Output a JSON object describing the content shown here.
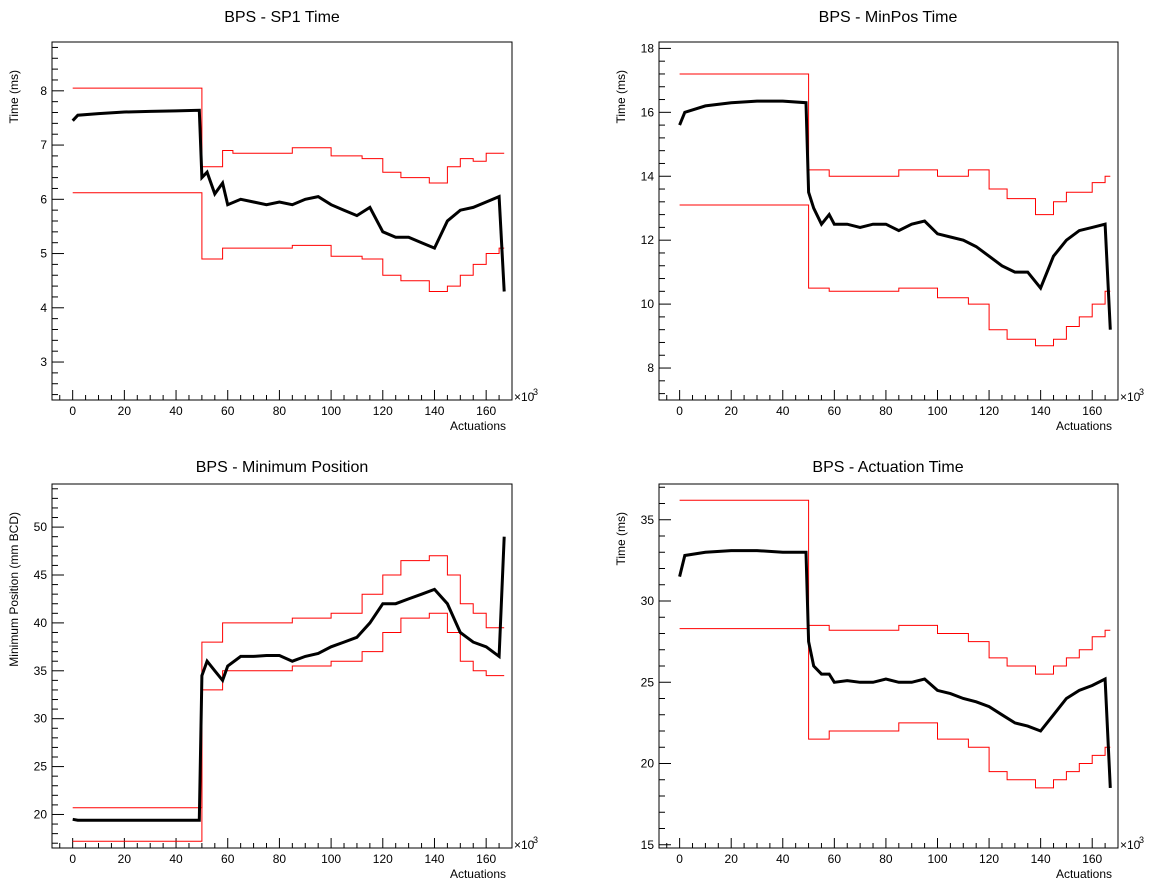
{
  "chart_data": [
    {
      "id": "sp1",
      "type": "line",
      "title": "BPS - SP1 Time",
      "xlabel": "Actuations",
      "ylabel": "Time (ms)",
      "x_multiplier": "×10",
      "x_multiplier_exp": "3",
      "xlim": [
        -8,
        170
      ],
      "ylim": [
        2.3,
        8.9
      ],
      "x_ticks": [
        0,
        20,
        40,
        60,
        80,
        100,
        120,
        140,
        160
      ],
      "y_ticks": [
        3,
        4,
        5,
        6,
        7,
        8
      ],
      "series": [
        {
          "role": "upper-limit",
          "color": "#ff0000",
          "x": [
            0,
            50,
            50,
            58,
            58,
            62,
            62,
            85,
            85,
            100,
            100,
            112,
            112,
            120,
            120,
            127,
            127,
            138,
            138,
            145,
            145,
            150,
            150,
            155,
            155,
            160,
            160,
            165,
            165,
            167
          ],
          "y": [
            8.05,
            8.05,
            6.6,
            6.6,
            6.9,
            6.9,
            6.85,
            6.85,
            6.95,
            6.95,
            6.8,
            6.8,
            6.75,
            6.75,
            6.5,
            6.5,
            6.4,
            6.4,
            6.3,
            6.3,
            6.6,
            6.6,
            6.75,
            6.75,
            6.7,
            6.7,
            6.85,
            6.85,
            6.85,
            6.85
          ]
        },
        {
          "role": "lower-limit",
          "color": "#ff0000",
          "x": [
            0,
            50,
            50,
            58,
            58,
            62,
            62,
            85,
            85,
            100,
            100,
            112,
            112,
            120,
            120,
            127,
            127,
            138,
            138,
            145,
            145,
            150,
            150,
            155,
            155,
            160,
            160,
            165,
            165,
            167
          ],
          "y": [
            6.12,
            6.12,
            4.9,
            4.9,
            5.1,
            5.1,
            5.1,
            5.1,
            5.15,
            5.15,
            4.95,
            4.95,
            4.9,
            4.9,
            4.6,
            4.6,
            4.5,
            4.5,
            4.3,
            4.3,
            4.4,
            4.4,
            4.6,
            4.6,
            4.8,
            4.8,
            5.0,
            5.0,
            5.1,
            5.1
          ]
        },
        {
          "role": "measured",
          "color": "#000000",
          "x": [
            0,
            2,
            10,
            20,
            30,
            40,
            49,
            50,
            52,
            55,
            58,
            60,
            65,
            70,
            75,
            80,
            85,
            90,
            95,
            100,
            105,
            110,
            115,
            120,
            125,
            130,
            135,
            140,
            145,
            150,
            155,
            160,
            165,
            167
          ],
          "y": [
            7.45,
            7.55,
            7.58,
            7.61,
            7.62,
            7.63,
            7.64,
            6.4,
            6.5,
            6.1,
            6.3,
            5.9,
            6.0,
            5.95,
            5.9,
            5.95,
            5.9,
            6.0,
            6.05,
            5.9,
            5.8,
            5.7,
            5.85,
            5.4,
            5.3,
            5.3,
            5.2,
            5.1,
            5.6,
            5.8,
            5.85,
            5.95,
            6.05,
            4.3
          ]
        }
      ]
    },
    {
      "id": "minpos",
      "type": "line",
      "title": "BPS - MinPos Time",
      "xlabel": "Actuations",
      "ylabel": "Time (ms)",
      "x_multiplier": "×10",
      "x_multiplier_exp": "3",
      "xlim": [
        -8,
        170
      ],
      "ylim": [
        7.0,
        18.2
      ],
      "x_ticks": [
        0,
        20,
        40,
        60,
        80,
        100,
        120,
        140,
        160
      ],
      "y_ticks": [
        8,
        10,
        12,
        14,
        16,
        18
      ],
      "series": [
        {
          "role": "upper-limit",
          "color": "#ff0000",
          "x": [
            0,
            50,
            50,
            58,
            58,
            62,
            62,
            85,
            85,
            100,
            100,
            112,
            112,
            120,
            120,
            127,
            127,
            138,
            138,
            145,
            145,
            150,
            150,
            155,
            155,
            160,
            160,
            165,
            165,
            167
          ],
          "y": [
            17.2,
            17.2,
            14.2,
            14.2,
            14.0,
            14.0,
            14.0,
            14.0,
            14.2,
            14.2,
            14.0,
            14.0,
            14.2,
            14.2,
            13.6,
            13.6,
            13.3,
            13.3,
            12.8,
            12.8,
            13.2,
            13.2,
            13.5,
            13.5,
            13.5,
            13.5,
            13.8,
            13.8,
            14.0,
            14.0
          ]
        },
        {
          "role": "lower-limit",
          "color": "#ff0000",
          "x": [
            0,
            50,
            50,
            58,
            58,
            62,
            62,
            85,
            85,
            100,
            100,
            112,
            112,
            120,
            120,
            127,
            127,
            138,
            138,
            145,
            145,
            150,
            150,
            155,
            155,
            160,
            160,
            165,
            165,
            167
          ],
          "y": [
            13.1,
            13.1,
            10.5,
            10.5,
            10.4,
            10.4,
            10.4,
            10.4,
            10.5,
            10.5,
            10.2,
            10.2,
            10.0,
            10.0,
            9.2,
            9.2,
            8.9,
            8.9,
            8.7,
            8.7,
            8.9,
            8.9,
            9.3,
            9.3,
            9.6,
            9.6,
            10.0,
            10.0,
            10.4,
            10.4
          ]
        },
        {
          "role": "measured",
          "color": "#000000",
          "x": [
            0,
            2,
            10,
            20,
            30,
            40,
            49,
            50,
            52,
            55,
            58,
            60,
            65,
            70,
            75,
            80,
            85,
            90,
            95,
            100,
            105,
            110,
            115,
            120,
            125,
            130,
            135,
            140,
            145,
            150,
            155,
            160,
            165,
            167
          ],
          "y": [
            15.6,
            16.0,
            16.2,
            16.3,
            16.35,
            16.35,
            16.3,
            13.5,
            13.0,
            12.5,
            12.8,
            12.5,
            12.5,
            12.4,
            12.5,
            12.5,
            12.3,
            12.5,
            12.6,
            12.2,
            12.1,
            12.0,
            11.8,
            11.5,
            11.2,
            11.0,
            11.0,
            10.5,
            11.5,
            12.0,
            12.3,
            12.4,
            12.5,
            9.2
          ]
        }
      ]
    },
    {
      "id": "minposition",
      "type": "line",
      "title": "BPS - Minimum Position",
      "xlabel": "Actuations",
      "ylabel": "Minimum Position (mm BCD)",
      "x_multiplier": "×10",
      "x_multiplier_exp": "3",
      "xlim": [
        -8,
        170
      ],
      "ylim": [
        16.5,
        54.5
      ],
      "x_ticks": [
        0,
        20,
        40,
        60,
        80,
        100,
        120,
        140,
        160
      ],
      "y_ticks": [
        20,
        25,
        30,
        35,
        40,
        45,
        50
      ],
      "series": [
        {
          "role": "upper-limit",
          "color": "#ff0000",
          "x": [
            0,
            50,
            50,
            58,
            58,
            62,
            62,
            85,
            85,
            100,
            100,
            112,
            112,
            120,
            120,
            127,
            127,
            138,
            138,
            145,
            145,
            150,
            150,
            155,
            155,
            160,
            160,
            165,
            165,
            167
          ],
          "y": [
            20.7,
            20.7,
            38.0,
            38.0,
            40.0,
            40.0,
            40.0,
            40.0,
            40.5,
            40.5,
            41.0,
            41.0,
            43.0,
            43.0,
            45.0,
            45.0,
            46.5,
            46.5,
            47.0,
            47.0,
            45.0,
            45.0,
            42.0,
            42.0,
            41.0,
            41.0,
            39.5,
            39.5,
            39.5,
            39.5
          ]
        },
        {
          "role": "lower-limit",
          "color": "#ff0000",
          "x": [
            0,
            50,
            50,
            58,
            58,
            62,
            62,
            85,
            85,
            100,
            100,
            112,
            112,
            120,
            120,
            127,
            127,
            138,
            138,
            145,
            145,
            150,
            150,
            155,
            155,
            160,
            160,
            165,
            165,
            167
          ],
          "y": [
            17.2,
            17.2,
            33.0,
            33.0,
            35.0,
            35.0,
            35.0,
            35.0,
            35.5,
            35.5,
            36.0,
            36.0,
            37.0,
            37.0,
            39.0,
            39.0,
            40.5,
            40.5,
            41.0,
            41.0,
            39.0,
            39.0,
            36.0,
            36.0,
            35.0,
            35.0,
            34.5,
            34.5,
            34.5,
            34.5
          ]
        },
        {
          "role": "measured",
          "color": "#000000",
          "x": [
            0,
            2,
            10,
            20,
            30,
            40,
            49,
            50,
            52,
            55,
            58,
            60,
            65,
            70,
            75,
            80,
            85,
            90,
            95,
            100,
            105,
            110,
            115,
            120,
            125,
            130,
            135,
            140,
            145,
            150,
            155,
            160,
            165,
            167
          ],
          "y": [
            19.5,
            19.4,
            19.4,
            19.4,
            19.4,
            19.4,
            19.4,
            34.5,
            36.0,
            35.0,
            34.0,
            35.5,
            36.5,
            36.5,
            36.6,
            36.6,
            36.0,
            36.5,
            36.8,
            37.5,
            38.0,
            38.5,
            40.0,
            42.0,
            42.0,
            42.5,
            43.0,
            43.5,
            42.0,
            39.0,
            38.0,
            37.5,
            36.5,
            49.0
          ]
        }
      ]
    },
    {
      "id": "actuation",
      "type": "line",
      "title": "BPS - Actuation Time",
      "xlabel": "Actuations",
      "ylabel": "Time (ms)",
      "x_multiplier": "×10",
      "x_multiplier_exp": "3",
      "xlim": [
        -8,
        170
      ],
      "ylim": [
        14.8,
        37.2
      ],
      "x_ticks": [
        0,
        20,
        40,
        60,
        80,
        100,
        120,
        140,
        160
      ],
      "y_ticks": [
        15,
        20,
        25,
        30,
        35
      ],
      "series": [
        {
          "role": "upper-limit",
          "color": "#ff0000",
          "x": [
            0,
            50,
            50,
            58,
            58,
            62,
            62,
            85,
            85,
            100,
            100,
            112,
            112,
            120,
            120,
            127,
            127,
            138,
            138,
            145,
            145,
            150,
            150,
            155,
            155,
            160,
            160,
            165,
            165,
            167
          ],
          "y": [
            36.2,
            36.2,
            28.5,
            28.5,
            28.2,
            28.2,
            28.2,
            28.2,
            28.5,
            28.5,
            28.0,
            28.0,
            27.5,
            27.5,
            26.5,
            26.5,
            26.0,
            26.0,
            25.5,
            25.5,
            26.0,
            26.0,
            26.5,
            26.5,
            27.0,
            27.0,
            27.8,
            27.8,
            28.2,
            28.2
          ]
        },
        {
          "role": "lower-limit",
          "color": "#ff0000",
          "x": [
            0,
            50,
            50,
            58,
            58,
            62,
            62,
            85,
            85,
            100,
            100,
            112,
            112,
            120,
            120,
            127,
            127,
            138,
            138,
            145,
            145,
            150,
            150,
            155,
            155,
            160,
            160,
            165,
            165,
            167
          ],
          "y": [
            28.3,
            28.3,
            21.5,
            21.5,
            22.0,
            22.0,
            22.0,
            22.0,
            22.5,
            22.5,
            21.5,
            21.5,
            21.0,
            21.0,
            19.5,
            19.5,
            19.0,
            19.0,
            18.5,
            18.5,
            19.0,
            19.0,
            19.5,
            19.5,
            20.0,
            20.0,
            20.5,
            20.5,
            21.0,
            21.0
          ]
        },
        {
          "role": "measured",
          "color": "#000000",
          "x": [
            0,
            2,
            10,
            20,
            30,
            40,
            49,
            50,
            52,
            55,
            58,
            60,
            65,
            70,
            75,
            80,
            85,
            90,
            95,
            100,
            105,
            110,
            115,
            120,
            125,
            130,
            135,
            140,
            145,
            150,
            155,
            160,
            165,
            167
          ],
          "y": [
            31.5,
            32.8,
            33.0,
            33.1,
            33.1,
            33.0,
            33.0,
            27.5,
            26.0,
            25.5,
            25.5,
            25.0,
            25.1,
            25.0,
            25.0,
            25.2,
            25.0,
            25.0,
            25.2,
            24.5,
            24.3,
            24.0,
            23.8,
            23.5,
            23.0,
            22.5,
            22.3,
            22.0,
            23.0,
            24.0,
            24.5,
            24.8,
            25.2,
            18.5
          ]
        }
      ]
    }
  ]
}
